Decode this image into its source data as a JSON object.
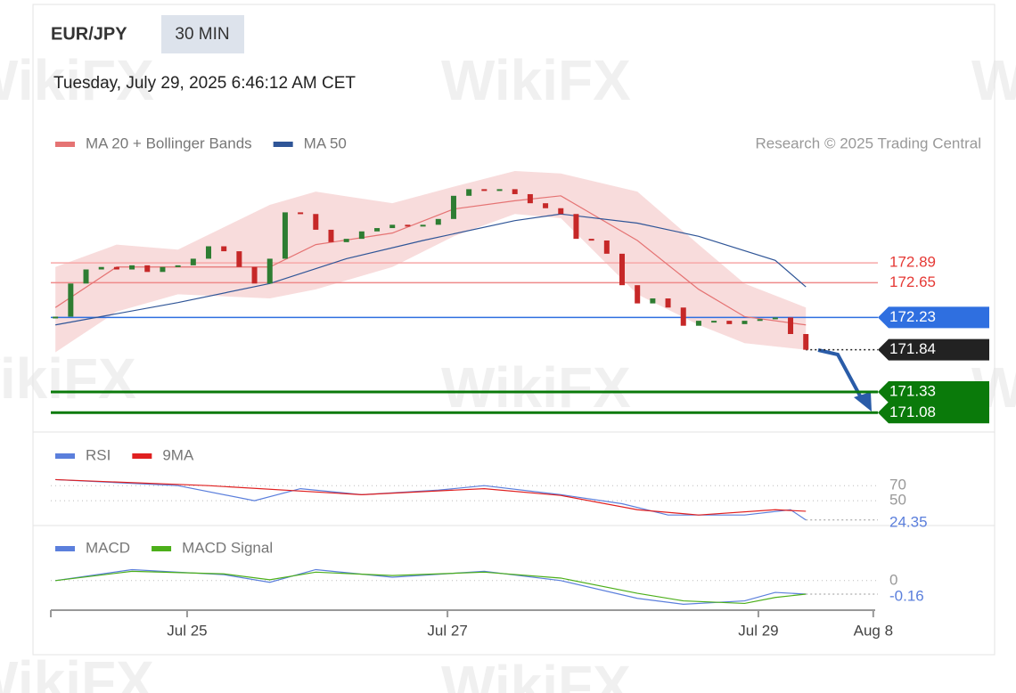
{
  "header": {
    "symbol": "EUR/JPY",
    "interval": "30 MIN",
    "timestamp": "Tuesday, July 29, 2025 6:46:12 AM CET",
    "credit": "Research © 2025 Trading Central"
  },
  "watermark": "WikiFX",
  "chart_data": [
    {
      "type": "candlestick",
      "up_color": "#2e7d32",
      "down_color": "#c62828",
      "values": [
        172.24,
        172.64,
        172.81,
        172.84,
        172.81,
        172.86,
        172.78,
        172.84,
        172.86,
        172.94,
        173.09,
        173.03,
        172.84,
        172.64,
        172.94,
        173.5,
        173.48,
        173.29,
        173.14,
        173.18,
        173.27,
        173.31,
        173.35,
        173.33,
        173.35,
        173.42,
        173.7,
        173.78,
        173.76,
        173.78,
        173.72,
        173.61,
        173.55,
        173.48,
        173.18,
        173.16,
        173.0,
        172.62,
        172.4,
        172.46,
        172.35,
        172.13,
        172.19,
        172.19,
        172.15,
        172.19,
        172.21,
        172.23,
        172.03,
        171.84
      ],
      "xlim": [
        -0.3,
        53.7
      ],
      "ylim": [
        170.9,
        174.15
      ],
      "series": [
        {
          "name": "MA 20 + Bollinger Bands",
          "color": "#e57373",
          "x": [
            0,
            4,
            8,
            14,
            17,
            22,
            26,
            30,
            33,
            38,
            42,
            45,
            49
          ],
          "values": [
            172.35,
            172.84,
            172.84,
            172.84,
            173.11,
            173.25,
            173.54,
            173.64,
            173.7,
            173.16,
            172.57,
            172.24,
            172.14
          ],
          "band": {
            "upper": [
              172.84,
              173.11,
              173.05,
              173.59,
              173.75,
              173.61,
              173.81,
              174.0,
              173.97,
              173.75,
              173.11,
              172.64,
              172.35
            ],
            "lower": [
              171.81,
              172.3,
              172.51,
              172.46,
              172.57,
              172.84,
              173.21,
              173.48,
              173.43,
              172.51,
              172.14,
              171.92,
              171.84
            ]
          }
        },
        {
          "name": "MA 50",
          "color": "#2f5597",
          "x": [
            0,
            8,
            14,
            19,
            24,
            30,
            33,
            38,
            42,
            47,
            49
          ],
          "values": [
            172.14,
            172.41,
            172.64,
            172.94,
            173.16,
            173.4,
            173.48,
            173.37,
            173.21,
            172.92,
            172.6
          ]
        }
      ],
      "levels": [
        {
          "value": 172.89,
          "color": "#f7a8a8",
          "label_color": "#e53935",
          "style": "line",
          "tag": false
        },
        {
          "value": 172.65,
          "color": "#ef8a8a",
          "label_color": "#e53935",
          "style": "line",
          "tag": false
        },
        {
          "value": 172.23,
          "color": "#2f6fe0",
          "label_color": "#ffffff",
          "style": "line",
          "tag": true
        },
        {
          "value": 171.84,
          "color": "#222222",
          "label_color": "#ffffff",
          "style": "dotted",
          "tag": true
        },
        {
          "value": 171.33,
          "color": "#0a7a0a",
          "label_color": "#ffffff",
          "style": "thick",
          "tag": true
        },
        {
          "value": 171.08,
          "color": "#0a7a0a",
          "label_color": "#ffffff",
          "style": "thick",
          "tag": true
        }
      ]
    },
    {
      "type": "line",
      "xlim": [
        -0.3,
        53.7
      ],
      "ylim": [
        17,
        88
      ],
      "yticks": [
        70,
        50
      ],
      "series": [
        {
          "name": "RSI",
          "color": "#5b7fdc",
          "x": [
            0,
            8,
            13,
            16,
            20,
            25,
            28,
            33,
            37,
            40,
            45,
            48,
            49
          ],
          "values": [
            78,
            70,
            50,
            66,
            58,
            64,
            70,
            58,
            46,
            31,
            31,
            38,
            24.35
          ]
        },
        {
          "name": "9MA",
          "color": "#e02020",
          "x": [
            0,
            10,
            20,
            28,
            33,
            38,
            42,
            47,
            49
          ],
          "values": [
            78,
            70,
            58,
            66,
            57,
            38,
            31,
            38,
            36
          ]
        }
      ]
    },
    {
      "type": "line",
      "xlim": [
        -0.3,
        53.7
      ],
      "ylim": [
        -0.35,
        0.23
      ],
      "yticks": [
        0
      ],
      "xticks": [
        {
          "value": 8.6,
          "label": "Jul 25"
        },
        {
          "value": 25.6,
          "label": "Jul 27"
        },
        {
          "value": 45.9,
          "label": "Jul 29"
        },
        {
          "value": 53.4,
          "label": "Aug 8"
        }
      ],
      "series": [
        {
          "name": "MACD",
          "color": "#5b7fdc",
          "x": [
            0,
            5,
            11,
            14,
            17,
            22,
            28,
            33,
            38,
            41,
            45,
            47,
            49
          ],
          "values": [
            0.0,
            0.13,
            0.07,
            -0.02,
            0.13,
            0.04,
            0.11,
            0.0,
            -0.21,
            -0.28,
            -0.24,
            -0.14,
            -0.16
          ]
        },
        {
          "name": "MACD Signal",
          "color": "#4caf1a",
          "x": [
            0,
            5,
            11,
            14,
            17,
            22,
            28,
            33,
            38,
            41,
            45,
            47,
            49
          ],
          "values": [
            0.0,
            0.11,
            0.08,
            0.01,
            0.1,
            0.06,
            0.1,
            0.03,
            -0.15,
            -0.24,
            -0.27,
            -0.2,
            -0.16
          ]
        }
      ]
    }
  ]
}
